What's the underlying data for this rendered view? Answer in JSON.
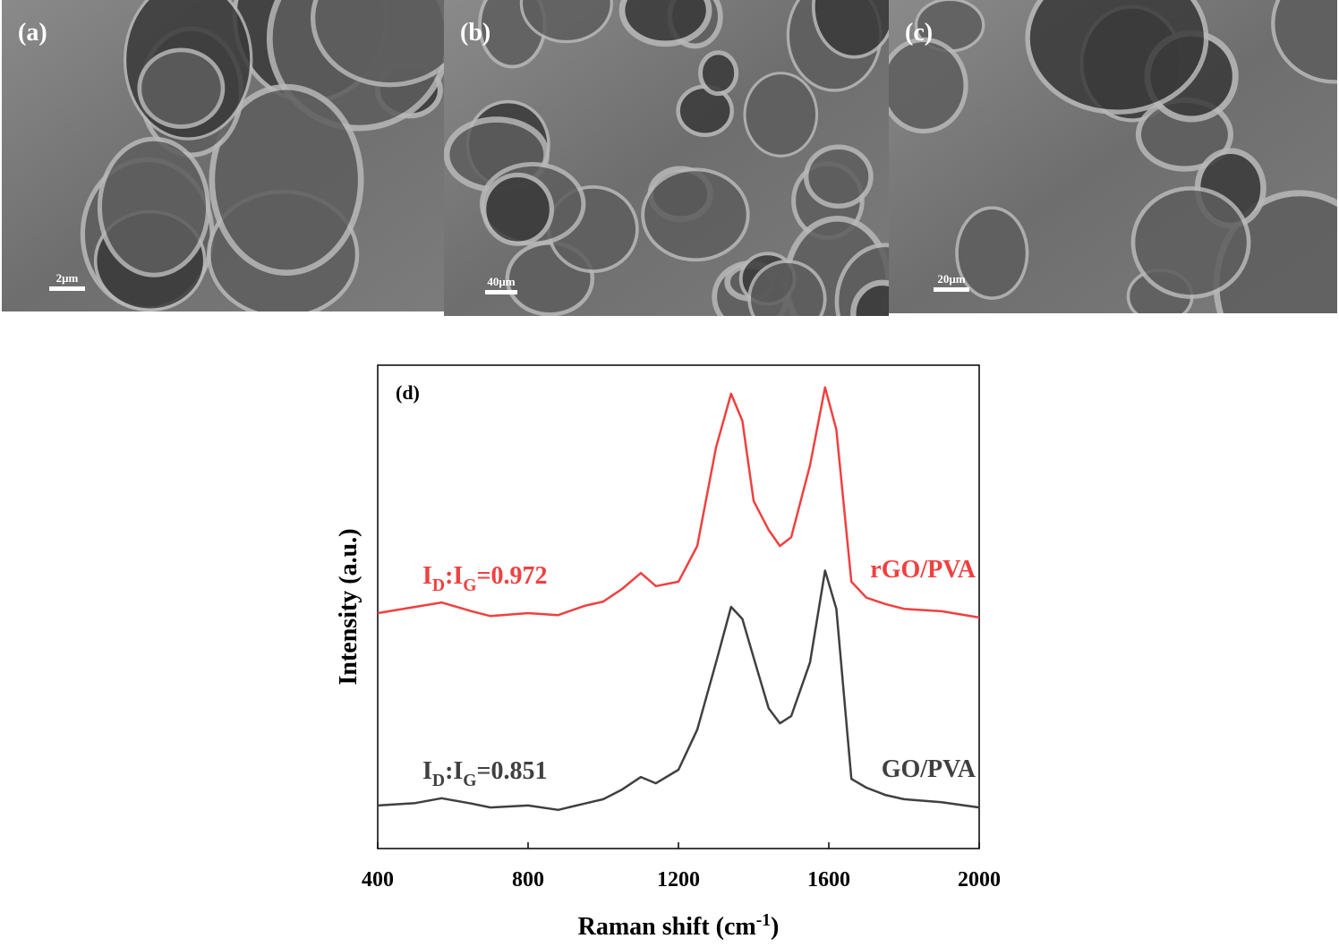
{
  "panels": [
    {
      "label": "(a)",
      "scale_bar": "2μm"
    },
    {
      "label": "(b)",
      "scale_bar": "40μm"
    },
    {
      "label": "(c)",
      "scale_bar": "20μm"
    }
  ],
  "chart_data": {
    "type": "line",
    "panel_label": "(d)",
    "xlabel": {
      "parts": [
        {
          "text": "Raman shift (cm"
        },
        {
          "text": "-1",
          "sup": true
        },
        {
          "text": ")"
        }
      ]
    },
    "ylabel": "Intensity (a.u.)",
    "x": [
      400,
      500,
      570,
      650,
      700,
      800,
      880,
      950,
      1000,
      1050,
      1100,
      1140,
      1200,
      1250,
      1300,
      1340,
      1370,
      1400,
      1440,
      1470,
      1500,
      1550,
      1590,
      1620,
      1660,
      1700,
      1750,
      1800,
      1900,
      2000
    ],
    "xlim": [
      400,
      2000
    ],
    "xticks": [
      400,
      800,
      1200,
      1600,
      2000
    ],
    "ylim": [
      0,
      100
    ],
    "series": [
      {
        "name": "rGO/PVA",
        "color": "#f04040",
        "values": [
          48.7,
          50.0,
          50.9,
          49.1,
          48.1,
          48.7,
          48.3,
          50.2,
          51.1,
          53.7,
          57.0,
          54.3,
          55.2,
          62.6,
          83.0,
          94.1,
          88.5,
          71.9,
          65.9,
          62.6,
          64.4,
          79.3,
          95.4,
          86.7,
          55.2,
          51.9,
          50.6,
          49.6,
          49.1,
          47.8
        ],
        "annotation": {
          "parts": [
            {
              "text": "I"
            },
            {
              "text": "D",
              "sub": true
            },
            {
              "text": ":I"
            },
            {
              "text": "G",
              "sub": true
            },
            {
              "text": "=0.972"
            }
          ]
        }
      },
      {
        "name": "GO/PVA",
        "color": "#404040",
        "values": [
          8.9,
          9.4,
          10.4,
          9.3,
          8.5,
          8.9,
          8.0,
          9.3,
          10.2,
          12.2,
          14.8,
          13.5,
          16.3,
          24.6,
          38.5,
          50.0,
          47.5,
          39.5,
          29.0,
          25.9,
          27.4,
          38.5,
          57.5,
          49.6,
          14.4,
          12.6,
          11.1,
          10.2,
          9.6,
          8.5
        ],
        "annotation": {
          "parts": [
            {
              "text": "I"
            },
            {
              "text": "D",
              "sub": true
            },
            {
              "text": ":I"
            },
            {
              "text": "G",
              "sub": true
            },
            {
              "text": "=0.851"
            }
          ]
        }
      }
    ]
  }
}
